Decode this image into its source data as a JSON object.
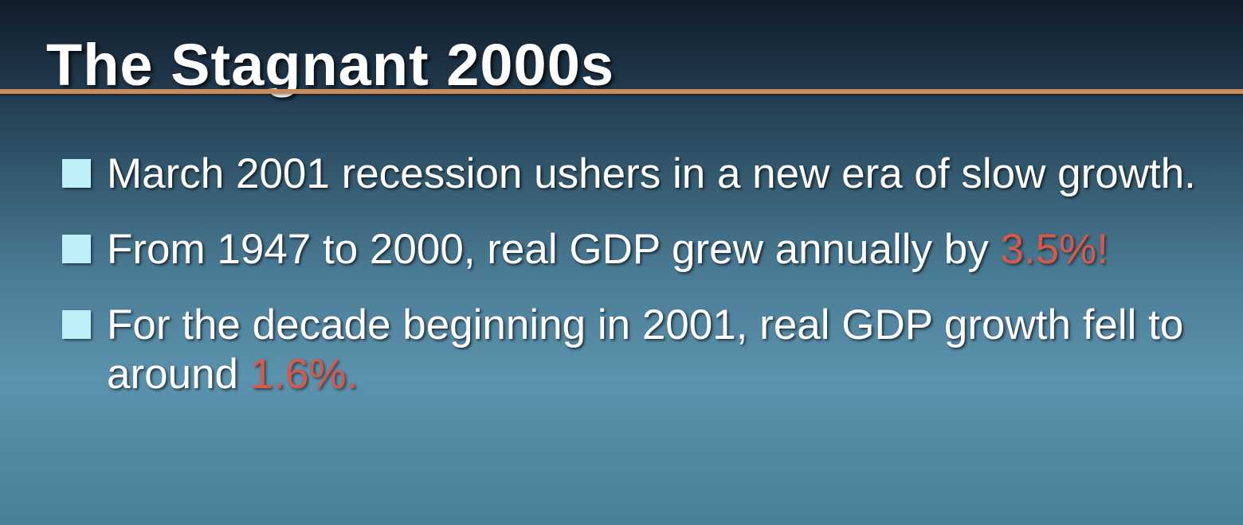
{
  "slide": {
    "title": "The Stagnant 2000s",
    "bullets": [
      {
        "text": "March 2001 recession ushers in a new era of slow growth.",
        "highlight": ""
      },
      {
        "text": "From 1947 to 2000, real GDP grew annually by ",
        "highlight": "3.5%!"
      },
      {
        "text": "For the decade beginning in 2001, real GDP growth fell to around ",
        "highlight": "1.6%."
      }
    ]
  },
  "colors": {
    "title_text": "#ffffff",
    "title_rule": "#c98a5d",
    "bullet_square": "#bfeff8",
    "highlight_text": "#d8584a"
  },
  "icons": {
    "bullet": "square-bullet-icon"
  }
}
